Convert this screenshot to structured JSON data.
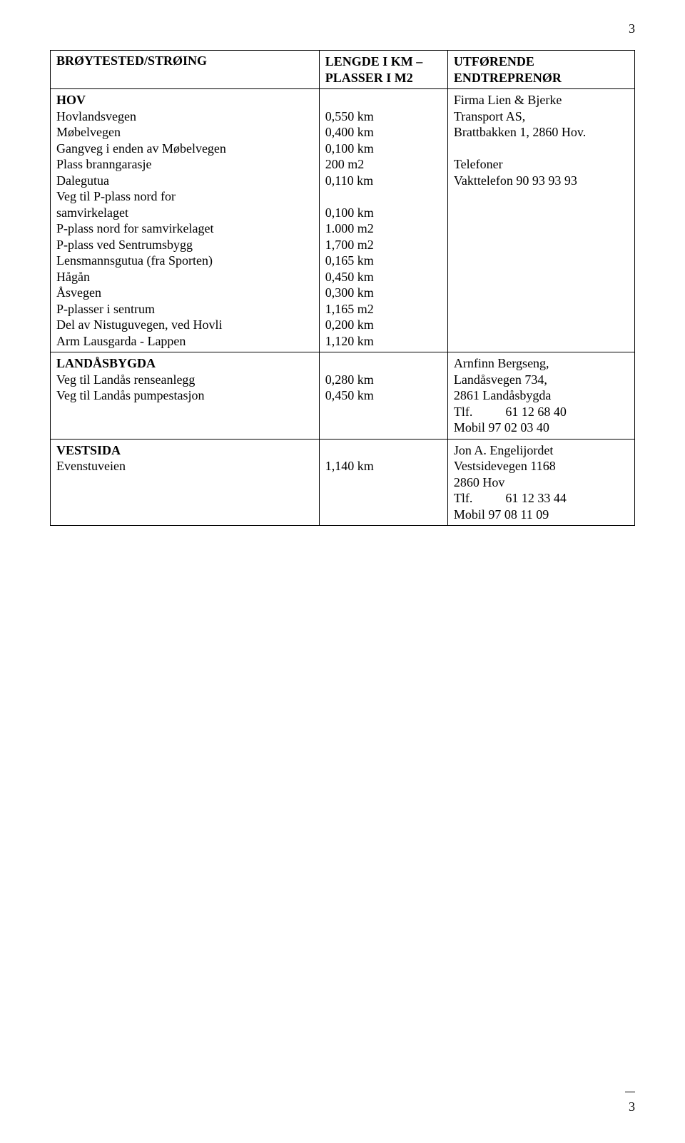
{
  "page_number_top": "3",
  "page_number_bottom": "3",
  "header": {
    "col1": "BRØYTESTED/STRØING",
    "col2_l1": "LENGDE I KM –",
    "col2_l2": "PLASSER I M2",
    "col3_l1": "UTFØRENDE",
    "col3_l2": "ENDTREPRENØR"
  },
  "sections": {
    "hov": {
      "title": "HOV",
      "rows": [
        {
          "label": "Hovlandsvegen",
          "value": "0,550 km"
        },
        {
          "label": "Møbelvegen",
          "value": "0,400 km"
        },
        {
          "label": "Gangveg i enden av Møbelvegen",
          "value": "0,100 km"
        },
        {
          "label": "Plass branngarasje",
          "value": "200 m2"
        },
        {
          "label": "Dalegutua",
          "value": "0,110 km"
        },
        {
          "label": "Veg til P-plass nord for",
          "value": ""
        },
        {
          "label": "samvirkelaget",
          "value": "0,100 km"
        },
        {
          "label": "P-plass nord for samvirkelaget",
          "value": "1.000 m2"
        },
        {
          "label": "P-plass ved Sentrumsbygg",
          "value": "1,700 m2"
        },
        {
          "label": "Lensmannsgutua (fra Sporten)",
          "value": "0,165 km"
        },
        {
          "label": "Hågån",
          "value": "0,450 km"
        },
        {
          "label": "Åsvegen",
          "value": "0,300 km"
        },
        {
          "label": "P-plasser i sentrum",
          "value": "1,165 m2"
        },
        {
          "label": "Del av Nistuguvegen, ved Hovli",
          "value": "0,200 km"
        },
        {
          "label": "Arm Lausgarda - Lappen",
          "value": "1,120 km"
        }
      ],
      "contractor": {
        "l1": "Firma Lien & Bjerke",
        "l2": "Transport AS,",
        "l3": "Brattbakken 1, 2860 Hov.",
        "blank": "",
        "l4": "Telefoner",
        "l5": "Vakttelefon 90 93 93 93"
      }
    },
    "landasbygda": {
      "title": "LANDÅSBYGDA",
      "rows": [
        {
          "label": "Veg til Landås renseanlegg",
          "value": "0,280 km"
        },
        {
          "label": "Veg til Landås pumpestasjon",
          "value": "0,450 km"
        }
      ],
      "contractor": {
        "l1": "Arnfinn Bergseng,",
        "l2": "Landåsvegen 734,",
        "l3": "2861 Landåsbygda",
        "l4_prefix": "Tlf.",
        "l4_num": "61 12 68 40",
        "l5": "Mobil 97 02 03 40"
      }
    },
    "vestsida": {
      "title": "VESTSIDA",
      "rows": [
        {
          "label": "Evenstuveien",
          "value": "1,140 km"
        }
      ],
      "contractor": {
        "l1": "Jon A. Engelijordet",
        "l2": "Vestsidevegen 1168",
        "l3": "2860 Hov",
        "l4_prefix": "Tlf.",
        "l4_num": "61 12 33 44",
        "l5": "Mobil 97 08 11 09"
      }
    }
  }
}
